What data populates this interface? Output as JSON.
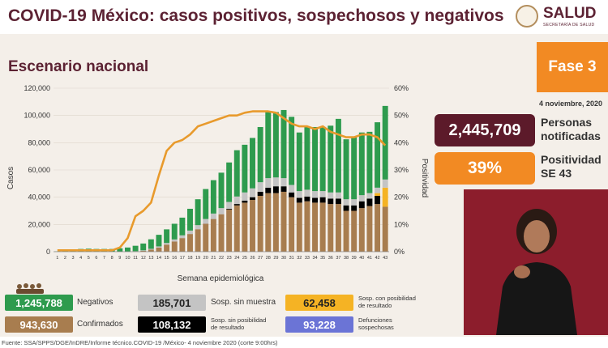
{
  "header": {
    "title": "COVID-19 México: casos positivos, sospechosos y negativos",
    "logo_text": "SALUD",
    "logo_sub": "SECRETARÍA DE SALUD"
  },
  "subtitle": "Escenario nacional",
  "fase": "Fase 3",
  "date": "4 noviembre, 2020",
  "notificadas": {
    "value": "2,445,709",
    "label_1": "Personas",
    "label_2": "notificadas"
  },
  "positividad": {
    "value": "39%",
    "label_1": "Positividad",
    "label_2": "SE 43"
  },
  "legend": {
    "negativos": {
      "value": "1,245,788",
      "label": "Negativos",
      "color": "#2e9b4e"
    },
    "confirmados": {
      "value": "943,630",
      "label": "Confirmados",
      "color": "#a87d4f"
    },
    "sosp_sin_muestra": {
      "value": "185,701",
      "label": "Sosp. sin muestra",
      "color": "#c4c4c4"
    },
    "sosp_sin_posibilidad": {
      "value": "108,132",
      "label_1": "Sosp. sin posibilidad",
      "label_2": "de resultado",
      "color": "#000000"
    },
    "sosp_con_posibilidad": {
      "value": "62,458",
      "label_1": "Sosp. con posibilidad",
      "label_2": "de resultado",
      "color": "#f5b324"
    },
    "defunciones": {
      "value": "93,228",
      "label_1": "Defunciones",
      "label_2": "sospechosas",
      "color": "#6b74d6"
    }
  },
  "footer": "Fuente: SSA/SPPS/DGE/InDRE/Informe técnico.COVID-19 /México- 4 noviembre 2020 (corte 9:00hrs)",
  "chart_data": {
    "type": "bar",
    "stacked": true,
    "xlabel": "Semana epidemiológica",
    "ylabel": "Casos",
    "y2label": "Positividad",
    "ylim": [
      0,
      120000
    ],
    "y2lim": [
      0,
      60
    ],
    "yticks": [
      "0",
      "20,000",
      "40,000",
      "60,000",
      "80,000",
      "100,000",
      "120,000"
    ],
    "y2ticks": [
      "0%",
      "10%",
      "20%",
      "30%",
      "40%",
      "50%",
      "60%"
    ],
    "categories": [
      "1",
      "2",
      "3",
      "4",
      "5",
      "6",
      "7",
      "8",
      "9",
      "10",
      "11",
      "12",
      "13",
      "14",
      "15",
      "16",
      "17",
      "18",
      "19",
      "20",
      "21",
      "22",
      "23",
      "24",
      "25",
      "26",
      "27",
      "28",
      "29",
      "30",
      "31",
      "32",
      "33",
      "34",
      "35",
      "36",
      "37",
      "38",
      "39",
      "40",
      "41",
      "42",
      "43"
    ],
    "series": [
      {
        "name": "Confirmados",
        "color": "#a87d4f",
        "values": [
          0,
          0,
          0,
          0,
          0,
          0,
          0,
          0,
          0,
          20,
          150,
          600,
          1500,
          3000,
          5200,
          7500,
          10000,
          13000,
          16500,
          20500,
          24000,
          27500,
          31000,
          34000,
          36000,
          38000,
          41000,
          43000,
          43000,
          44000,
          40000,
          36000,
          37000,
          36000,
          36000,
          35000,
          35000,
          30000,
          30000,
          32000,
          33500,
          35000,
          33000
        ]
      },
      {
        "name": "Sosp. sin posibilidad de resultado",
        "color": "#000000",
        "values": [
          0,
          0,
          0,
          0,
          0,
          0,
          0,
          0,
          0,
          0,
          0,
          0,
          0,
          0,
          0,
          0,
          0,
          0,
          0,
          0,
          0,
          0,
          500,
          1000,
          1500,
          2000,
          3000,
          4000,
          5000,
          4000,
          3500,
          3500,
          3500,
          3500,
          4000,
          4000,
          4000,
          4000,
          4000,
          5000,
          5500,
          6000,
          0
        ]
      },
      {
        "name": "Sosp. con posibilidad de resultado",
        "color": "#f5b324",
        "values": [
          0,
          0,
          0,
          0,
          0,
          0,
          0,
          0,
          0,
          0,
          0,
          0,
          0,
          0,
          0,
          0,
          0,
          0,
          0,
          0,
          0,
          0,
          0,
          0,
          0,
          0,
          0,
          0,
          0,
          0,
          0,
          0,
          0,
          0,
          0,
          0,
          0,
          0,
          0,
          0,
          0,
          2000,
          14000
        ]
      },
      {
        "name": "Sosp. sin muestra",
        "color": "#c4c4c4",
        "values": [
          0,
          0,
          0,
          0,
          0,
          0,
          0,
          0,
          0,
          50,
          200,
          400,
          600,
          900,
          1200,
          1500,
          2000,
          2500,
          3000,
          3500,
          4000,
          4500,
          5000,
          5500,
          6000,
          6500,
          7000,
          7000,
          6500,
          6000,
          5500,
          5000,
          5000,
          5000,
          4500,
          4500,
          4500,
          4500,
          4500,
          4500,
          4000,
          4000,
          6000
        ]
      },
      {
        "name": "Negativos",
        "color": "#2e9b4e",
        "values": [
          200,
          800,
          1500,
          2000,
          2200,
          2000,
          2000,
          2000,
          2500,
          3000,
          4000,
          5000,
          7000,
          8500,
          10000,
          11500,
          13000,
          16000,
          19000,
          22000,
          24500,
          26000,
          29000,
          34000,
          35000,
          37000,
          40500,
          49000,
          48000,
          50000,
          50000,
          43000,
          46000,
          47000,
          47000,
          49000,
          54000,
          44000,
          45500,
          46000,
          45000,
          48000,
          54000
        ]
      },
      {
        "name": "Positividad",
        "color": "#e89a2c",
        "type": "line",
        "axis": "right",
        "values": [
          0.5,
          0.5,
          0.5,
          0.5,
          0.5,
          0.5,
          0.5,
          0.5,
          1.5,
          5,
          13,
          15,
          18,
          28,
          37,
          40,
          41,
          43,
          46,
          47,
          48,
          49,
          50,
          50,
          51,
          51.5,
          51.5,
          51.5,
          51,
          49,
          47,
          46,
          46,
          45,
          46,
          44,
          43,
          42,
          42,
          43,
          43,
          42,
          39
        ]
      }
    ]
  }
}
